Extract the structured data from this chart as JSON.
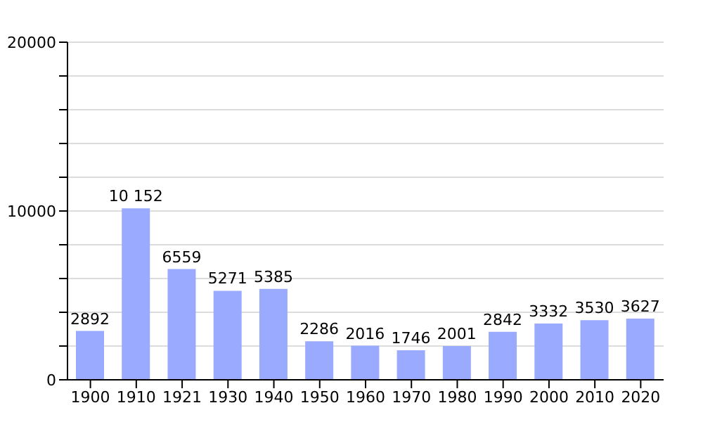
{
  "chart_data": {
    "type": "bar",
    "categories": [
      "1900",
      "1910",
      "1921",
      "1930",
      "1940",
      "1950",
      "1960",
      "1970",
      "1980",
      "1990",
      "2000",
      "2010",
      "2020"
    ],
    "values": [
      2892,
      10152,
      6559,
      5271,
      5385,
      2286,
      2016,
      1746,
      2001,
      2842,
      3332,
      3530,
      3627
    ],
    "value_labels": [
      "2892",
      "10 152",
      "6559",
      "5271",
      "5385",
      "2286",
      "2016",
      "1746",
      "2001",
      "2842",
      "3332",
      "3530",
      "3627"
    ],
    "color": "#99aaff",
    "ylim": [
      0,
      20000
    ],
    "yticks": [
      0,
      {
        "value": 2000,
        "label": null
      },
      {
        "value": 4000,
        "label": null
      },
      {
        "value": 6000,
        "label": null
      },
      {
        "value": 8000,
        "label": null
      },
      10000,
      {
        "value": 12000,
        "label": null
      },
      {
        "value": 14000,
        "label": null
      },
      {
        "value": 16000,
        "label": null
      },
      {
        "value": 18000,
        "label": null
      },
      20000
    ],
    "grid": "y"
  }
}
